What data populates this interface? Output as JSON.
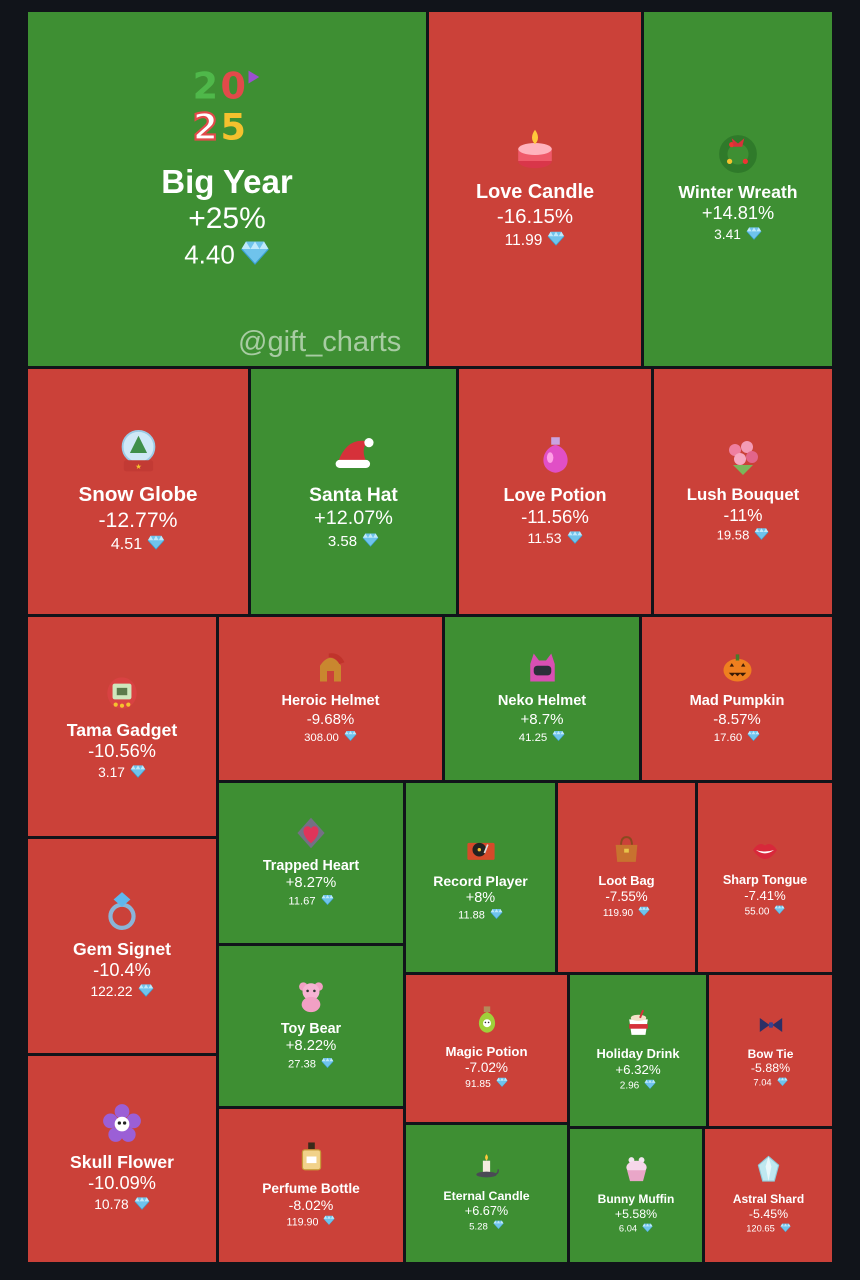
{
  "watermark": "@gift_charts",
  "colors": {
    "gain": "#3e8f33",
    "loss": "#cb4139",
    "gem": "#6fc3ec"
  },
  "chart_data": {
    "type": "treemap",
    "currency_icon": "diamond-icon",
    "items": [
      {
        "name": "Big Year",
        "change": "+25%",
        "price": "4.40",
        "direction": "up",
        "icon": "number-balloons-icon"
      },
      {
        "name": "Love Candle",
        "change": "-16.15%",
        "price": "11.99",
        "direction": "down",
        "icon": "candle-icon"
      },
      {
        "name": "Winter Wreath",
        "change": "+14.81%",
        "price": "3.41",
        "direction": "up",
        "icon": "wreath-icon"
      },
      {
        "name": "Snow Globe",
        "change": "-12.77%",
        "price": "4.51",
        "direction": "down",
        "icon": "snow-globe-icon"
      },
      {
        "name": "Santa Hat",
        "change": "+12.07%",
        "price": "3.58",
        "direction": "up",
        "icon": "santa-hat-icon"
      },
      {
        "name": "Love Potion",
        "change": "-11.56%",
        "price": "11.53",
        "direction": "down",
        "icon": "potion-bottle-icon"
      },
      {
        "name": "Lush Bouquet",
        "change": "-11%",
        "price": "19.58",
        "direction": "down",
        "icon": "bouquet-icon"
      },
      {
        "name": "Tama Gadget",
        "change": "-10.56%",
        "price": "3.17",
        "direction": "down",
        "icon": "tamagotchi-icon"
      },
      {
        "name": "Heroic Helmet",
        "change": "-9.68%",
        "price": "308.00",
        "direction": "down",
        "icon": "spartan-helmet-icon"
      },
      {
        "name": "Neko Helmet",
        "change": "+8.7%",
        "price": "41.25",
        "direction": "up",
        "icon": "cat-helmet-icon"
      },
      {
        "name": "Mad Pumpkin",
        "change": "-8.57%",
        "price": "17.60",
        "direction": "down",
        "icon": "pumpkin-icon"
      },
      {
        "name": "Trapped Heart",
        "change": "+8.27%",
        "price": "11.67",
        "direction": "up",
        "icon": "heart-icon"
      },
      {
        "name": "Record Player",
        "change": "+8%",
        "price": "11.88",
        "direction": "up",
        "icon": "record-player-icon"
      },
      {
        "name": "Loot Bag",
        "change": "-7.55%",
        "price": "119.90",
        "direction": "down",
        "icon": "handbag-icon"
      },
      {
        "name": "Sharp Tongue",
        "change": "-7.41%",
        "price": "55.00",
        "direction": "down",
        "icon": "lips-icon"
      },
      {
        "name": "Gem Signet",
        "change": "-10.4%",
        "price": "122.22",
        "direction": "down",
        "icon": "ring-icon"
      },
      {
        "name": "Toy Bear",
        "change": "+8.22%",
        "price": "27.38",
        "direction": "up",
        "icon": "teddy-bear-icon"
      },
      {
        "name": "Magic Potion",
        "change": "-7.02%",
        "price": "91.85",
        "direction": "down",
        "icon": "skull-potion-icon"
      },
      {
        "name": "Holiday Drink",
        "change": "+6.32%",
        "price": "2.96",
        "direction": "up",
        "icon": "hot-drink-icon"
      },
      {
        "name": "Bow Tie",
        "change": "-5.88%",
        "price": "7.04",
        "direction": "down",
        "icon": "bow-tie-icon"
      },
      {
        "name": "Skull Flower",
        "change": "-10.09%",
        "price": "10.78",
        "direction": "down",
        "icon": "skull-flower-icon"
      },
      {
        "name": "Perfume Bottle",
        "change": "-8.02%",
        "price": "119.90",
        "direction": "down",
        "icon": "perfume-icon"
      },
      {
        "name": "Eternal Candle",
        "change": "+6.67%",
        "price": "5.28",
        "direction": "up",
        "icon": "candle-holder-icon"
      },
      {
        "name": "Bunny Muffin",
        "change": "+5.58%",
        "price": "6.04",
        "direction": "up",
        "icon": "muffin-icon"
      },
      {
        "name": "Astral Shard",
        "change": "-5.45%",
        "price": "120.65",
        "direction": "down",
        "icon": "crystal-icon"
      }
    ]
  }
}
